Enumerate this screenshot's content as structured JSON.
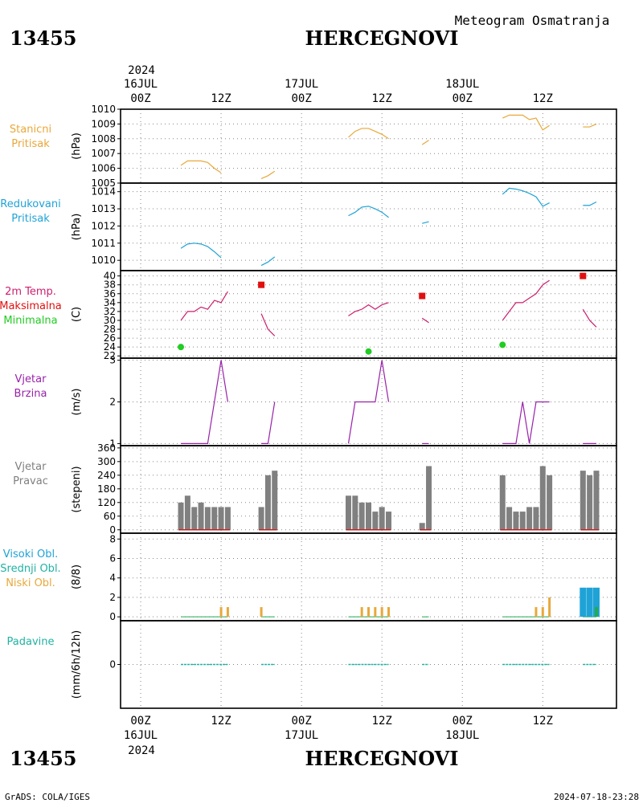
{
  "header": {
    "station_id": "13455",
    "station_name": "HERCEGNOVI",
    "subtitle": "Meteogram Osmatranja"
  },
  "footer": {
    "station_id": "13455",
    "station_name": "HERCEGNOVI",
    "credit": "GrADS: COLA/IGES",
    "timestamp": "2024-07-18-23:28"
  },
  "time_axis": {
    "start": "2024-07-16T00Z",
    "end": "2024-07-18T23Z",
    "year_label": "2024",
    "tick_labels": [
      "00Z",
      "12Z",
      "00Z",
      "12Z",
      "00Z",
      "12Z"
    ],
    "day_labels": [
      "16JUL",
      "17JUL",
      "18JUL"
    ]
  },
  "chart_data": [
    {
      "type": "line",
      "id": "station_pressure",
      "labels": [
        "Stanicni",
        "Pritisak"
      ],
      "ylabel": "(hPa)",
      "yticks": [
        1005,
        1006,
        1007,
        1008,
        1009,
        1010
      ],
      "ylim": [
        1005,
        1010
      ],
      "color": "#e8a83a",
      "segments": [
        {
          "x": [
            6,
            7,
            8,
            9,
            10,
            11,
            12
          ],
          "y": [
            1006.2,
            1006.5,
            1006.5,
            1006.5,
            1006.4,
            1006.0,
            1005.7
          ]
        },
        {
          "x": [
            18,
            19,
            20
          ],
          "y": [
            1005.3,
            1005.5,
            1005.8
          ]
        },
        {
          "x": [
            31,
            32,
            33,
            34,
            35,
            36,
            37
          ],
          "y": [
            1008.1,
            1008.5,
            1008.7,
            1008.7,
            1008.5,
            1008.3,
            1008.0
          ]
        },
        {
          "x": [
            42,
            43
          ],
          "y": [
            1007.6,
            1007.9
          ]
        },
        {
          "x": [
            54,
            55,
            56,
            57,
            58,
            59,
            60,
            61
          ],
          "y": [
            1009.4,
            1009.6,
            1009.6,
            1009.6,
            1009.3,
            1009.4,
            1008.6,
            1008.9
          ]
        },
        {
          "x": [
            66,
            67,
            68
          ],
          "y": [
            1008.8,
            1008.8,
            1009.0
          ]
        }
      ]
    },
    {
      "type": "line",
      "id": "reduced_pressure",
      "labels": [
        "Redukovani",
        "Pritisak"
      ],
      "ylabel": "(hPa)",
      "yticks": [
        1010,
        1011,
        1012,
        1013,
        1014
      ],
      "ylim": [
        1009.4,
        1014.5
      ],
      "color": "#1fa3d6",
      "segments": [
        {
          "x": [
            6,
            7,
            8,
            9,
            10,
            11,
            12
          ],
          "y": [
            1010.7,
            1010.95,
            1011.0,
            1010.95,
            1010.8,
            1010.5,
            1010.15
          ]
        },
        {
          "x": [
            18,
            19,
            20
          ],
          "y": [
            1009.7,
            1009.9,
            1010.2
          ]
        },
        {
          "x": [
            31,
            32,
            33,
            34,
            35,
            36,
            37
          ],
          "y": [
            1012.6,
            1012.8,
            1013.1,
            1013.15,
            1013.0,
            1012.8,
            1012.5
          ]
        },
        {
          "x": [
            42,
            43
          ],
          "y": [
            1012.15,
            1012.25
          ]
        },
        {
          "x": [
            54,
            55,
            56,
            57,
            58,
            59,
            60,
            61
          ],
          "y": [
            1013.85,
            1014.2,
            1014.15,
            1014.05,
            1013.9,
            1013.7,
            1013.15,
            1013.35
          ]
        },
        {
          "x": [
            66,
            67,
            68
          ],
          "y": [
            1013.2,
            1013.2,
            1013.4
          ]
        }
      ]
    },
    {
      "type": "line",
      "id": "temperature",
      "labels": [
        "2m Temp.",
        "Maksimalna",
        "Minimalna"
      ],
      "label_colors": [
        "#cc1f6e",
        "#e01010",
        "#22cc22"
      ],
      "ylabel": "(C)",
      "yticks": [
        22,
        24,
        26,
        28,
        30,
        32,
        34,
        36,
        38,
        40
      ],
      "ylim": [
        21.5,
        41.2
      ],
      "color": "#cc1f6e",
      "segments": [
        {
          "x": [
            6,
            7,
            8,
            9,
            10,
            11,
            12,
            13
          ],
          "y": [
            30,
            32,
            32,
            33,
            32.5,
            34.5,
            34,
            36.5
          ]
        },
        {
          "x": [
            18,
            19,
            20
          ],
          "y": [
            31.5,
            28,
            26.5
          ]
        },
        {
          "x": [
            31,
            32,
            33,
            34,
            35,
            36,
            37
          ],
          "y": [
            31,
            32,
            32.5,
            33.5,
            32.5,
            33.5,
            34
          ]
        },
        {
          "x": [
            42,
            43
          ],
          "y": [
            30.5,
            29.5
          ]
        },
        {
          "x": [
            54,
            55,
            56,
            57,
            58,
            59,
            60,
            61
          ],
          "y": [
            30,
            32,
            34,
            34,
            35,
            36,
            38,
            39
          ]
        },
        {
          "x": [
            66,
            67,
            68
          ],
          "y": [
            32.5,
            30,
            28.5
          ]
        }
      ],
      "max_markers": {
        "color": "#e01010",
        "x": [
          18,
          42,
          66
        ],
        "y": [
          38,
          35.5,
          40
        ]
      },
      "min_markers": {
        "color": "#22cc22",
        "x": [
          6,
          34,
          54
        ],
        "y": [
          24,
          23,
          24.5
        ]
      }
    },
    {
      "type": "line",
      "id": "wind_speed",
      "labels": [
        "Vjetar",
        "Brzina"
      ],
      "ylabel": "(m/s)",
      "yticks": [
        1,
        2,
        3
      ],
      "ylim": [
        0.95,
        3.05
      ],
      "color": "#9922aa",
      "segments": [
        {
          "x": [
            6,
            7,
            8,
            9,
            10,
            11,
            12,
            13
          ],
          "y": [
            1,
            1,
            1,
            1,
            1,
            2,
            3,
            2
          ]
        },
        {
          "x": [
            18,
            19,
            20
          ],
          "y": [
            1,
            1,
            2
          ]
        },
        {
          "x": [
            31,
            32,
            33,
            34,
            35,
            36,
            37
          ],
          "y": [
            1,
            2,
            2,
            2,
            2,
            3,
            2
          ]
        },
        {
          "x": [
            42,
            43
          ],
          "y": [
            1,
            1
          ]
        },
        {
          "x": [
            54,
            55,
            56,
            57,
            58,
            59,
            60,
            61
          ],
          "y": [
            1,
            1,
            1,
            2,
            1,
            2,
            2,
            2
          ]
        },
        {
          "x": [
            66,
            67,
            68
          ],
          "y": [
            1,
            1,
            1
          ]
        }
      ]
    },
    {
      "type": "bar",
      "id": "wind_direction",
      "labels": [
        "Vjetar",
        "Pravac"
      ],
      "ylabel": "(stepeni)",
      "yticks": [
        0,
        60,
        120,
        180,
        240,
        300,
        360
      ],
      "ylim": [
        -15,
        370
      ],
      "color": "#808080",
      "baseline_color": "#cc1f1f",
      "x": [
        6,
        7,
        8,
        9,
        10,
        11,
        12,
        13,
        18,
        19,
        20,
        31,
        32,
        33,
        34,
        35,
        36,
        37,
        42,
        43,
        54,
        55,
        56,
        57,
        58,
        59,
        60,
        61,
        66,
        67,
        68
      ],
      "values": [
        120,
        150,
        100,
        120,
        100,
        100,
        100,
        100,
        100,
        240,
        260,
        150,
        150,
        120,
        120,
        80,
        100,
        80,
        30,
        280,
        240,
        100,
        80,
        80,
        100,
        100,
        280,
        240,
        260,
        240,
        260
      ]
    },
    {
      "type": "bar",
      "id": "cloud_cover",
      "labels": [
        "Visoki Obl.",
        "Srednji Obl.",
        "Niski Obl."
      ],
      "label_colors": [
        "#1fa3d6",
        "#1fb3a3",
        "#e8a83a"
      ],
      "ylabel": "(8/8)",
      "yticks": [
        0,
        2,
        4,
        6,
        8
      ],
      "ylim": [
        -0.4,
        8.6
      ],
      "high_cloud": {
        "color": "#1fa3d6",
        "x": [
          66,
          67,
          68
        ],
        "values": [
          3,
          3,
          3
        ]
      },
      "mid_cloud": {
        "color": "#22aa55",
        "x": [
          68
        ],
        "values": [
          1
        ]
      },
      "low_cloud": {
        "color": "#e8a83a",
        "x": [
          12,
          13,
          18,
          33,
          34,
          35,
          36,
          37,
          59,
          60,
          61
        ],
        "values": [
          1,
          1,
          1,
          1,
          1,
          1,
          1,
          1,
          1,
          1,
          2
        ]
      }
    },
    {
      "type": "bar",
      "id": "precipitation",
      "labels": [
        "Padavine"
      ],
      "ylabel": "(mm/6h/12h)",
      "yticks": [
        0
      ],
      "ylim": [
        -5,
        5
      ],
      "color": "#1fb3a3",
      "segments": [
        {
          "x": [
            6,
            7,
            8,
            9,
            10,
            11,
            12,
            13
          ],
          "y": [
            0,
            0,
            0,
            0,
            0,
            0,
            0,
            0
          ]
        },
        {
          "x": [
            18,
            19,
            20
          ],
          "y": [
            0,
            0,
            0
          ]
        },
        {
          "x": [
            31,
            32,
            33,
            34,
            35,
            36,
            37
          ],
          "y": [
            0,
            0,
            0,
            0,
            0,
            0,
            0
          ]
        },
        {
          "x": [
            42,
            43
          ],
          "y": [
            0,
            0
          ]
        },
        {
          "x": [
            54,
            55,
            56,
            57,
            58,
            59,
            60,
            61
          ],
          "y": [
            0,
            0,
            0,
            0,
            0,
            0,
            0,
            0
          ]
        },
        {
          "x": [
            66,
            67,
            68
          ],
          "y": [
            0,
            0,
            0
          ]
        }
      ]
    }
  ]
}
